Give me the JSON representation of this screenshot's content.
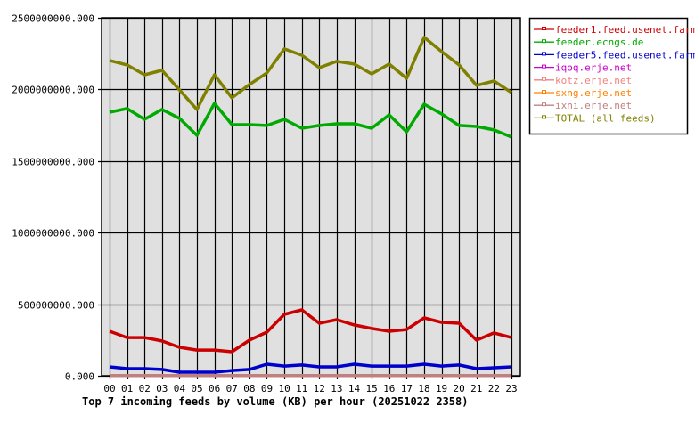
{
  "chart_data": {
    "type": "line",
    "title": "Top 7 incoming feeds by volume (KB) per hour (20251022 2358)",
    "xlabel": "",
    "ylabel": "",
    "ylim": [
      0,
      2500000000
    ],
    "grid": true,
    "legend_position": "right",
    "x": [
      "00",
      "01",
      "02",
      "03",
      "04",
      "05",
      "06",
      "07",
      "08",
      "09",
      "10",
      "11",
      "12",
      "13",
      "14",
      "15",
      "16",
      "17",
      "18",
      "19",
      "20",
      "21",
      "22",
      "23"
    ],
    "y_ticks": [
      "0.000",
      "500000000.000",
      "1000000000.000",
      "1500000000.000",
      "2000000000.000",
      "2500000000.000"
    ],
    "series": [
      {
        "name": "feeder1.feed.usenet.farm",
        "color": "#cc0000",
        "values": [
          311000000,
          267000000,
          267000000,
          243000000,
          199000000,
          180000000,
          180000000,
          168000000,
          249000000,
          305000000,
          429000000,
          460000000,
          367000000,
          392000000,
          355000000,
          330000000,
          311000000,
          323000000,
          404000000,
          373000000,
          367000000,
          249000000,
          299000000,
          267000000
        ]
      },
      {
        "name": "feeder.ecngs.de",
        "color": "#00aa00",
        "values": [
          1841000000,
          1866000000,
          1791000000,
          1860000000,
          1798000000,
          1679000000,
          1903000000,
          1754000000,
          1754000000,
          1748000000,
          1791000000,
          1729000000,
          1748000000,
          1760000000,
          1760000000,
          1729000000,
          1822000000,
          1704000000,
          1897000000,
          1829000000,
          1748000000,
          1741000000,
          1717000000,
          1667000000
        ]
      },
      {
        "name": "feeder5.feed.usenet.farm",
        "color": "#0000cc",
        "values": [
          62000000,
          50000000,
          50000000,
          44000000,
          25000000,
          25000000,
          25000000,
          37000000,
          44000000,
          81000000,
          68000000,
          75000000,
          62000000,
          62000000,
          81000000,
          68000000,
          68000000,
          68000000,
          81000000,
          68000000,
          75000000,
          50000000,
          56000000,
          62000000
        ]
      },
      {
        "name": "iqoq.erje.net",
        "color": "#cc00cc",
        "values": [
          2000000,
          2000000,
          2000000,
          2000000,
          2000000,
          2000000,
          2000000,
          2000000,
          2000000,
          2000000,
          2000000,
          2000000,
          2000000,
          2000000,
          2000000,
          2000000,
          2000000,
          2000000,
          2000000,
          2000000,
          2000000,
          2000000,
          2000000,
          2000000
        ]
      },
      {
        "name": "kotz.erje.net",
        "color": "#f08080",
        "values": [
          1500000,
          1500000,
          1500000,
          1500000,
          1500000,
          1500000,
          1500000,
          1500000,
          1500000,
          1500000,
          1500000,
          1500000,
          1500000,
          1500000,
          1500000,
          1500000,
          1500000,
          1500000,
          1500000,
          1500000,
          1500000,
          1500000,
          1500000,
          1500000
        ]
      },
      {
        "name": "sxng.erje.net",
        "color": "#ff8000",
        "values": [
          1200000,
          1200000,
          1200000,
          1200000,
          1200000,
          1200000,
          1200000,
          1200000,
          1200000,
          1200000,
          1200000,
          1200000,
          1200000,
          1200000,
          1200000,
          1200000,
          1200000,
          1200000,
          1200000,
          1200000,
          1200000,
          1200000,
          1200000,
          1200000
        ]
      },
      {
        "name": "ixni.erje.net",
        "color": "#c08080",
        "values": [
          1000000,
          1000000,
          1000000,
          1000000,
          1000000,
          1000000,
          1000000,
          1000000,
          1000000,
          1000000,
          1000000,
          1000000,
          1000000,
          1000000,
          1000000,
          1000000,
          1000000,
          1000000,
          1000000,
          1000000,
          1000000,
          1000000,
          1000000,
          1000000
        ]
      },
      {
        "name": "TOTAL (all feeds)",
        "color": "#808000",
        "values": [
          2202000000,
          2171000000,
          2102000000,
          2133000000,
          1997000000,
          1860000000,
          2102000000,
          1941000000,
          2034000000,
          2115000000,
          2283000000,
          2239000000,
          2152000000,
          2196000000,
          2177000000,
          2108000000,
          2177000000,
          2077000000,
          2364000000,
          2264000000,
          2171000000,
          2028000000,
          2059000000,
          1978000000
        ]
      }
    ]
  },
  "colors": {
    "plot_background": "#e0e0e0",
    "grid": "#000000",
    "legend_border": "#000000"
  }
}
